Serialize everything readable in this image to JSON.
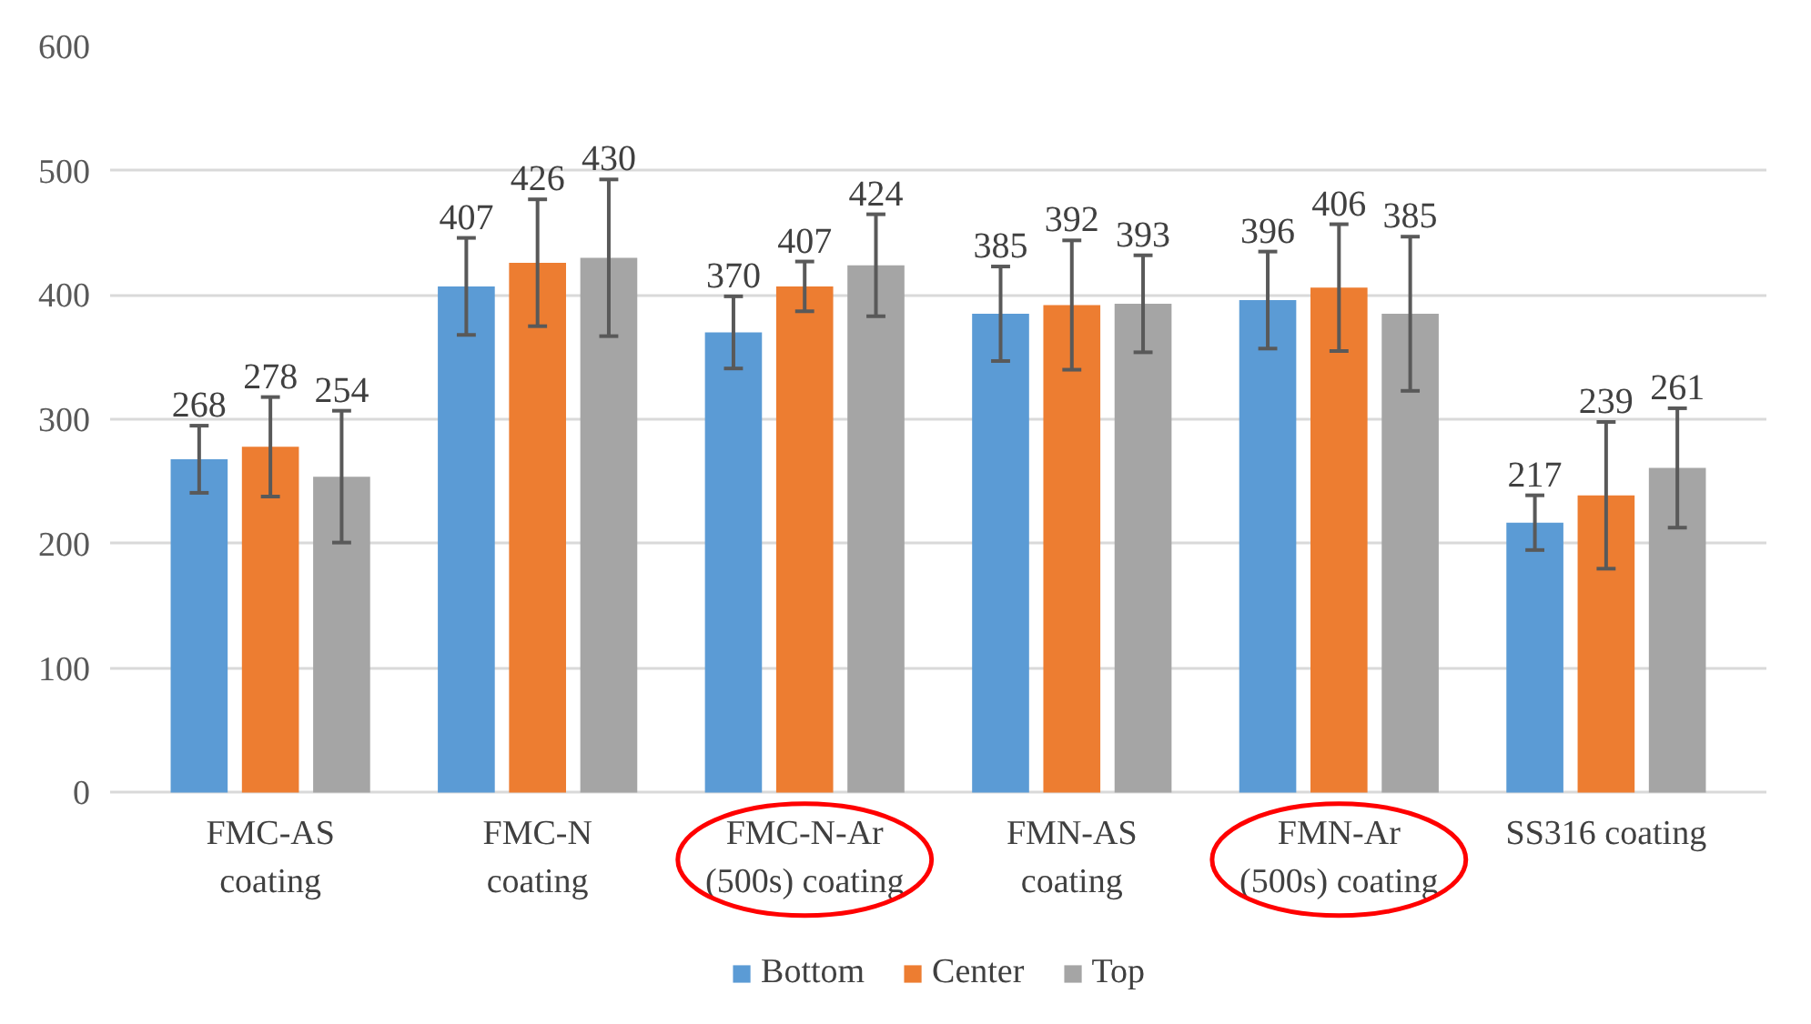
{
  "chart_data": {
    "type": "bar",
    "categories": [
      "FMC-AS\ncoating",
      "FMC-N\ncoating",
      "FMC-N-Ar\n(500s) coating",
      "FMN-AS\ncoating",
      "FMN-Ar\n(500s) coating",
      "SS316 coating"
    ],
    "series": [
      {
        "name": "Bottom",
        "color": "#5b9bd5",
        "values": [
          268,
          407,
          370,
          385,
          396,
          217
        ],
        "errors": [
          27,
          39,
          29,
          38,
          39,
          22
        ]
      },
      {
        "name": "Center",
        "color": "#ed7d31",
        "values": [
          278,
          426,
          407,
          392,
          406,
          239
        ],
        "errors": [
          40,
          51,
          20,
          52,
          51,
          59
        ]
      },
      {
        "name": "Top",
        "color": "#a5a5a5",
        "values": [
          254,
          430,
          424,
          393,
          385,
          261
        ],
        "errors": [
          53,
          63,
          41,
          39,
          62,
          48
        ]
      }
    ],
    "ylim": [
      0,
      600
    ],
    "yticks": [
      0,
      100,
      200,
      300,
      400,
      500,
      600
    ],
    "grid": "y",
    "legend": "bottom",
    "data_labels": true
  }
}
